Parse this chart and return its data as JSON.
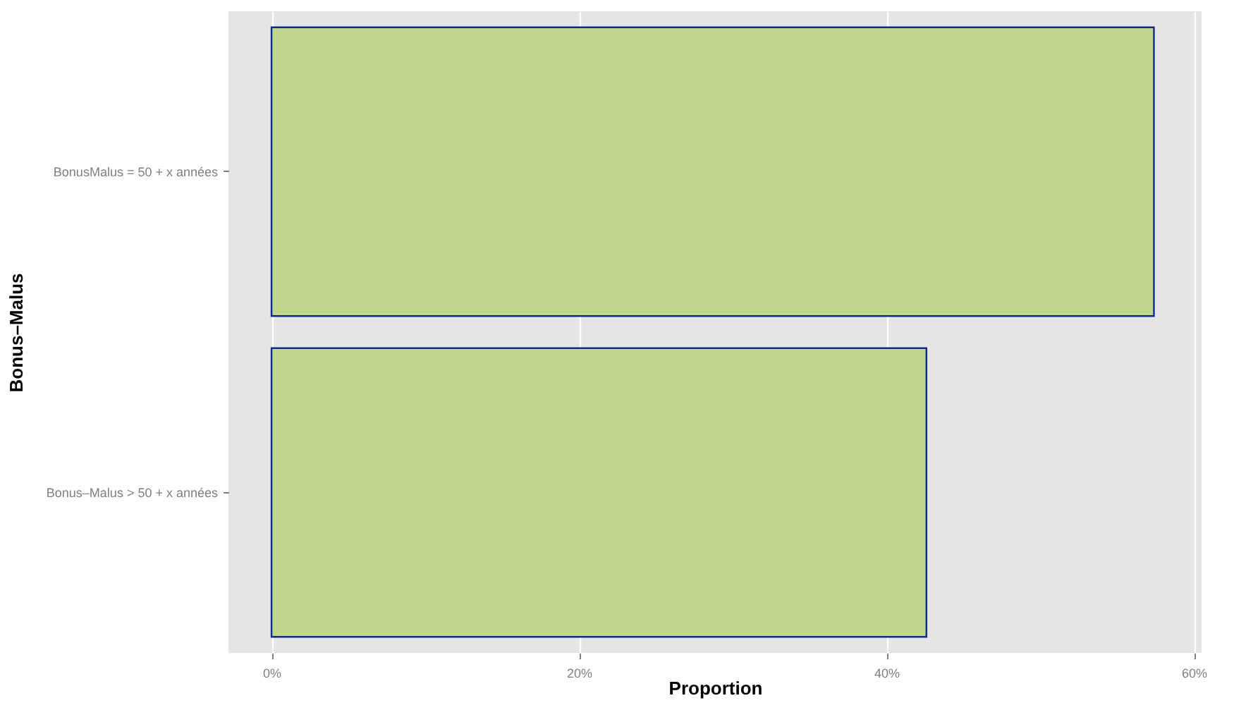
{
  "chart_data": {
    "type": "bar",
    "orientation": "horizontal",
    "xlabel": "Proportion",
    "ylabel": "Bonus–Malus",
    "categories": [
      "BonusMalus = 50 + x années",
      "Bonus–Malus > 50 + x années"
    ],
    "values": [
      57.4,
      42.6
    ],
    "color": "#c0d68c",
    "xlim": [
      -2.8,
      60.5
    ],
    "xticks": [
      {
        "value": 0,
        "label": "0%"
      },
      {
        "value": 20,
        "label": "20%"
      },
      {
        "value": 40,
        "label": "40%"
      },
      {
        "value": 60,
        "label": "60%"
      }
    ],
    "grid": true
  }
}
